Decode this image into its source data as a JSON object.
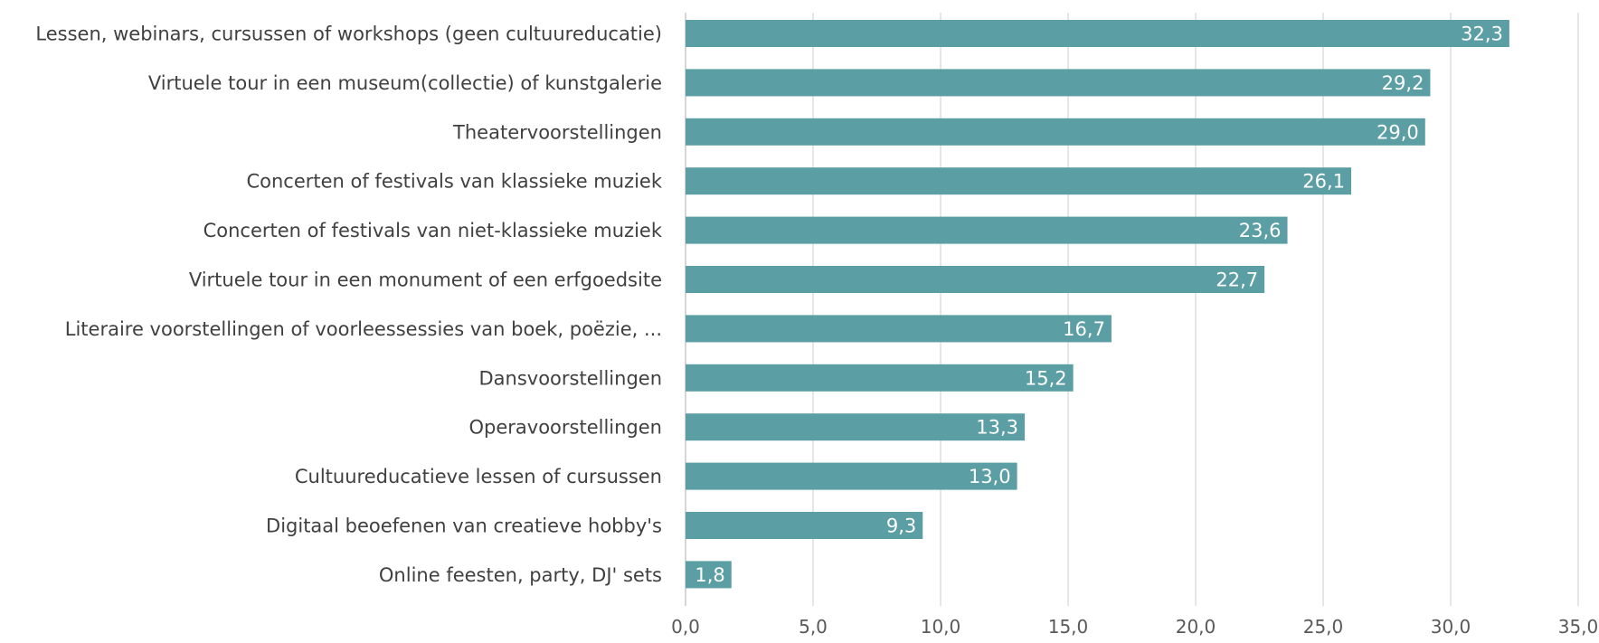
{
  "chart_data": {
    "type": "bar",
    "orientation": "horizontal",
    "title": "",
    "xlabel": "",
    "ylabel": "",
    "categories": [
      "Lessen, webinars, cursussen of workshops (geen cultuureducatie)",
      "Virtuele tour in een museum(collectie) of kunstgalerie",
      "Theatervoorstellingen",
      "Concerten of festivals van klassieke muziek",
      "Concerten of festivals van niet-klassieke muziek",
      "Virtuele tour in een monument of een erfgoedsite",
      "Literaire voorstellingen of voorleessessies van boek, poëzie, ...",
      "Dansvoorstellingen",
      "Operavoorstellingen",
      "Cultuureducatieve lessen of cursussen",
      "Digitaal beoefenen van creatieve hobby's",
      "Online feesten, party, DJ' sets"
    ],
    "values": [
      32.3,
      29.2,
      29.0,
      26.1,
      23.6,
      22.7,
      16.7,
      15.2,
      13.3,
      13.0,
      9.3,
      1.8
    ],
    "value_labels": [
      "32,3",
      "29,2",
      "29,0",
      "26,1",
      "23,6",
      "22,7",
      "16,7",
      "15,2",
      "13,3",
      "13,0",
      "9,3",
      "1,8"
    ],
    "xlim": [
      0,
      35
    ],
    "ticks": [
      0,
      5,
      10,
      15,
      20,
      25,
      30,
      35
    ],
    "tick_labels": [
      "0,0",
      "5,0",
      "10,0",
      "15,0",
      "20,0",
      "25,0",
      "30,0",
      "35,0"
    ],
    "grid": true,
    "legend": "none",
    "colors": {
      "bar": "#5b9ea4",
      "grid": "#d9d9d9",
      "label_text": "#404040",
      "tick_text": "#595959",
      "value_text": "#ffffff"
    }
  }
}
